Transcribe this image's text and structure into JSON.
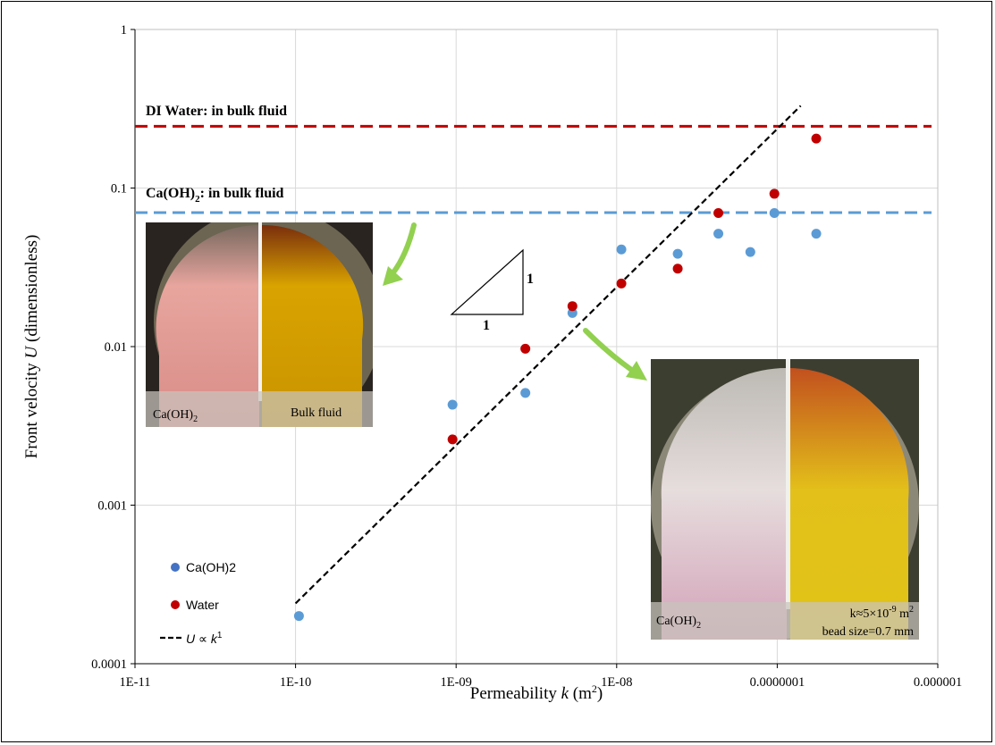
{
  "chart_data": {
    "type": "scatter",
    "x_scale": "log",
    "y_scale": "log",
    "xlim": [
      1e-11,
      1e-06
    ],
    "ylim": [
      0.0001,
      1
    ],
    "grid": true,
    "xlabel_text": "Permeability ",
    "xlabel_var": "k",
    "xlabel_unit": " (m",
    "xlabel_sup": "2",
    "xlabel_close": ")",
    "ylabel_text": "Front velocity ",
    "ylabel_var": "U",
    "ylabel_unit": " (dimensionless)",
    "x_ticks": [
      {
        "value": 1e-11,
        "label": "1E-11"
      },
      {
        "value": 1e-10,
        "label": "1E-10"
      },
      {
        "value": 1e-09,
        "label": "1E-09"
      },
      {
        "value": 1e-08,
        "label": "1E-08"
      },
      {
        "value": 1e-07,
        "label": "0.0000001"
      },
      {
        "value": 1e-06,
        "label": "0.000001"
      }
    ],
    "y_ticks": [
      {
        "value": 0.0001,
        "label": "0.0001"
      },
      {
        "value": 0.001,
        "label": "0.001"
      },
      {
        "value": 0.01,
        "label": "0.01"
      },
      {
        "value": 0.1,
        "label": "0.1"
      },
      {
        "value": 1,
        "label": "1"
      }
    ],
    "series": [
      {
        "name": "Ca(OH)2",
        "color": "#5b9bd5",
        "points": [
          {
            "x": 1.05e-10,
            "y": 0.0002
          },
          {
            "x": 9.5e-10,
            "y": 0.0043
          },
          {
            "x": 2.7e-09,
            "y": 0.0051
          },
          {
            "x": 5.3e-09,
            "y": 0.0163
          },
          {
            "x": 1.07e-08,
            "y": 0.041
          },
          {
            "x": 2.4e-08,
            "y": 0.0385
          },
          {
            "x": 4.3e-08,
            "y": 0.0515
          },
          {
            "x": 6.8e-08,
            "y": 0.0395
          },
          {
            "x": 9.6e-08,
            "y": 0.0695
          },
          {
            "x": 1.75e-07,
            "y": 0.0515
          }
        ]
      },
      {
        "name": "Water",
        "color": "#c00000",
        "points": [
          {
            "x": 9.5e-10,
            "y": 0.0026
          },
          {
            "x": 2.7e-09,
            "y": 0.0097
          },
          {
            "x": 5.3e-09,
            "y": 0.018
          },
          {
            "x": 1.07e-08,
            "y": 0.025
          },
          {
            "x": 2.4e-08,
            "y": 0.031
          },
          {
            "x": 4.3e-08,
            "y": 0.0695
          },
          {
            "x": 9.6e-08,
            "y": 0.092
          },
          {
            "x": 1.75e-07,
            "y": 0.205
          }
        ]
      }
    ],
    "fit_line": {
      "label_var": "U",
      "label_rel": " ∝ ",
      "label_k": "k",
      "label_exp": "1",
      "color": "#000000",
      "from": {
        "x": 1e-10,
        "y": 0.00024
      },
      "to": {
        "x": 1.4e-07,
        "y": 0.33
      }
    },
    "reference_lines": [
      {
        "label": "DI Water: in bulk fluid",
        "y": 0.245,
        "color": "#c00000"
      },
      {
        "label_main": "Ca(OH)",
        "label_sub": "2",
        "label_rest": ": in bulk fluid",
        "y": 0.07,
        "color": "#5b9bd5"
      }
    ],
    "slope_triangle": {
      "run_label": "1",
      "rise_label": "1"
    },
    "insets": [
      {
        "left_label": "Ca(OH)",
        "left_sub": "2",
        "right_label": "Bulk fluid"
      },
      {
        "left_label": "Ca(OH)",
        "left_sub": "2",
        "k_label": "k≈5×10",
        "k_exp": "-9",
        "k_unit": " m",
        "k_unit_exp": "2",
        "bead_label": "bead size=0.7 mm"
      }
    ],
    "arrow_color": "#92d050"
  }
}
